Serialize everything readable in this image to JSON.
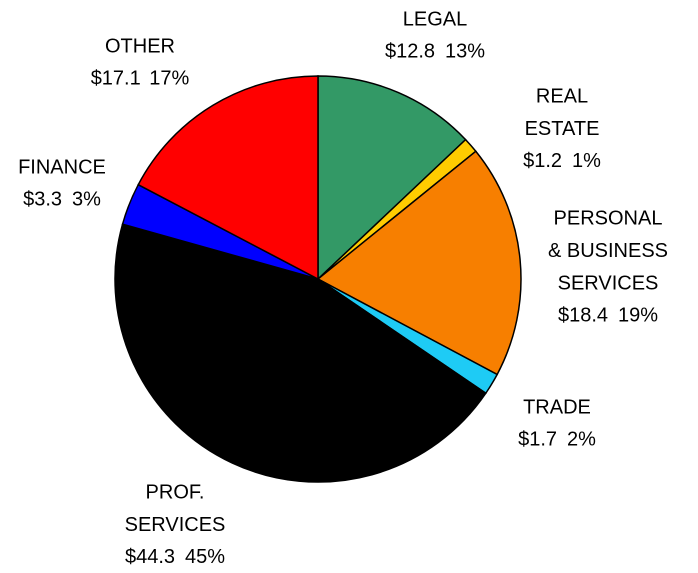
{
  "chart_data": {
    "type": "pie",
    "categories": [
      [
        "LEGAL"
      ],
      [
        "REAL",
        "ESTATE"
      ],
      [
        "PERSONAL",
        "& BUSINESS",
        "SERVICES"
      ],
      [
        "TRADE"
      ],
      [
        "PROF.",
        "SERVICES"
      ],
      [
        "FINANCE"
      ],
      [
        "OTHER"
      ]
    ],
    "values": [
      12.8,
      1.2,
      18.4,
      1.7,
      44.3,
      3.3,
      17.1
    ],
    "value_labels": [
      "$12.8",
      "$1.2",
      "$18.4",
      "$1.7",
      "$44.3",
      "$3.3",
      "$17.1"
    ],
    "percents": [
      13,
      1,
      19,
      2,
      45,
      3,
      17
    ],
    "percent_labels": [
      "13%",
      "1%",
      "19%",
      "2%",
      "45%",
      "3%",
      "17%"
    ],
    "colors": [
      "#339966",
      "#ffcc00",
      "#f77f00",
      "#1ecbf5",
      "#000000",
      "#0000ff",
      "#ff0000"
    ]
  }
}
